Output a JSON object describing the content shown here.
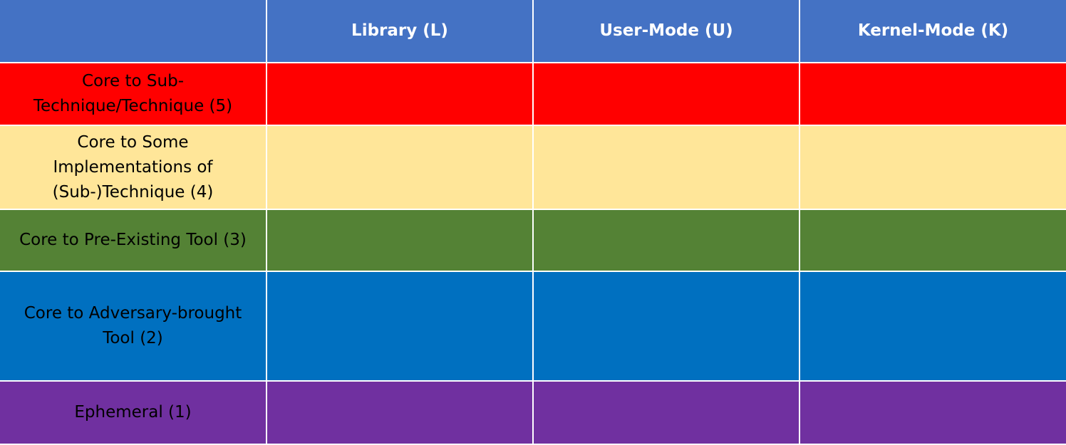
{
  "table": {
    "headers": [
      "",
      "Library (L)",
      "User-Mode (U)",
      "Kernel-Mode (K)"
    ],
    "rows": [
      {
        "label": "Core to Sub-\nTechnique/Technique (5)",
        "color": "#FF0000",
        "cells": [
          "",
          "",
          ""
        ]
      },
      {
        "label": "Core to Some\nImplementations of\n(Sub-)Technique (4)",
        "color": "#FFE699",
        "cells": [
          "",
          "",
          ""
        ]
      },
      {
        "label": "Core to Pre-Existing Tool (3)",
        "color": "#548235",
        "cells": [
          "",
          "",
          ""
        ]
      },
      {
        "label": "Core to Adversary-brought\nTool (2)",
        "color": "#0070C0",
        "cells": [
          "",
          "",
          ""
        ]
      },
      {
        "label": "Ephemeral (1)",
        "color": "#7030A0",
        "cells": [
          "",
          "",
          ""
        ]
      }
    ]
  },
  "colors": {
    "header": "#4472C4",
    "header_text": "#FFFFFF",
    "gridline": "#FFFFFF"
  }
}
